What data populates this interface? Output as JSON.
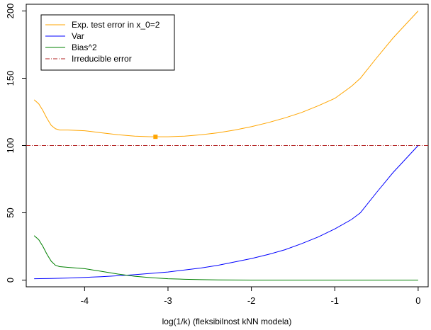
{
  "chart_data": {
    "type": "line",
    "xlabel": "log(1/k) (fleksibilnost kNN modela)",
    "ylabel": "",
    "xlim": [
      -4.7,
      0.12
    ],
    "ylim": [
      -5,
      205
    ],
    "x_ticks": [
      -4,
      -3,
      -2,
      -1,
      0
    ],
    "y_ticks": [
      0,
      50,
      100,
      150,
      200
    ],
    "grid": false,
    "legend_position": "top-left",
    "series": [
      {
        "name": "Exp. test error in x_0=2",
        "color": "#FFA500",
        "x": [
          -4.605,
          -4.55,
          -4.5,
          -4.45,
          -4.4,
          -4.35,
          -4.3,
          -4.2,
          -4.0,
          -3.8,
          -3.6,
          -3.4,
          -3.2,
          -3.0,
          -2.8,
          -2.6,
          -2.4,
          -2.2,
          -2.0,
          -1.8,
          -1.6,
          -1.4,
          -1.2,
          -1.0,
          -0.8,
          -0.693,
          -0.5,
          -0.3,
          0.0
        ],
        "y": [
          134,
          131,
          126,
          120,
          115,
          112.5,
          111.5,
          111.5,
          111,
          109.5,
          108,
          107,
          106.5,
          106.5,
          107,
          108,
          109.5,
          111.5,
          114,
          117,
          120.5,
          124.5,
          129.5,
          135,
          144,
          150,
          165,
          180,
          200
        ]
      },
      {
        "name": "Var",
        "color": "#0000FF",
        "x": [
          -4.605,
          -4.4,
          -4.2,
          -4.0,
          -3.8,
          -3.6,
          -3.4,
          -3.2,
          -3.0,
          -2.8,
          -2.6,
          -2.4,
          -2.2,
          -2.0,
          -1.8,
          -1.6,
          -1.4,
          -1.2,
          -1.0,
          -0.8,
          -0.693,
          -0.5,
          -0.3,
          0.0
        ],
        "y": [
          1,
          1.2,
          1.5,
          2,
          2.5,
          3.2,
          4,
          5,
          6,
          7.5,
          9,
          11,
          13.5,
          16,
          19,
          22.5,
          27,
          32,
          38,
          45,
          50,
          65,
          80,
          100
        ]
      },
      {
        "name": "Bias^2",
        "color": "#008000",
        "x": [
          -4.605,
          -4.55,
          -4.5,
          -4.45,
          -4.4,
          -4.35,
          -4.3,
          -4.2,
          -4.0,
          -3.8,
          -3.6,
          -3.4,
          -3.2,
          -3.0,
          -2.8,
          -2.6,
          -2.4,
          -2.0,
          -1.5,
          -1.0,
          -0.5,
          0.0
        ],
        "y": [
          33,
          30,
          25,
          19,
          14,
          11,
          10,
          9.5,
          8.5,
          6.5,
          4.5,
          2.8,
          1.8,
          1,
          0.6,
          0.3,
          0.1,
          0,
          0,
          0,
          0,
          0
        ]
      }
    ],
    "reference_lines": [
      {
        "name": "Irreducible error",
        "y": 100,
        "color": "#B22222",
        "style": "dashdot"
      }
    ],
    "markers": [
      {
        "x": -3.15,
        "y": 106.5,
        "color": "#FFA500",
        "shape": "square"
      }
    ]
  }
}
